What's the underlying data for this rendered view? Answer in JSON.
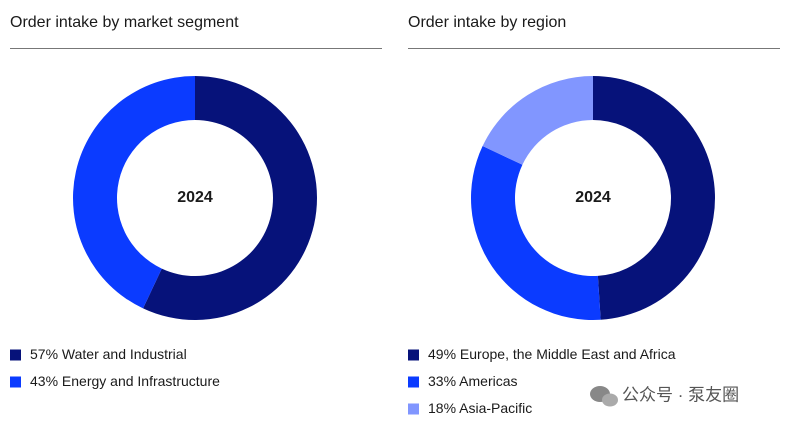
{
  "chart_data": [
    {
      "type": "donut",
      "title": "Order intake by market segment",
      "center_label": "2024",
      "categories": [
        "Water and Industrial",
        "Energy and Infrastructure"
      ],
      "values": [
        57,
        43
      ],
      "value_labels": [
        "57%",
        "43%"
      ],
      "colors": [
        "#06127a",
        "#0b3bff"
      ]
    },
    {
      "type": "donut",
      "title": "Order intake by region",
      "center_label": "2024",
      "categories": [
        "Europe, the Middle East and Africa",
        "Americas",
        "Asia-Pacific"
      ],
      "values": [
        49,
        33,
        18
      ],
      "value_labels": [
        "49%",
        "33%",
        "18%"
      ],
      "colors": [
        "#06127a",
        "#0b3bff",
        "#8196ff"
      ]
    }
  ],
  "watermark": "公众号 · 泵友圈"
}
